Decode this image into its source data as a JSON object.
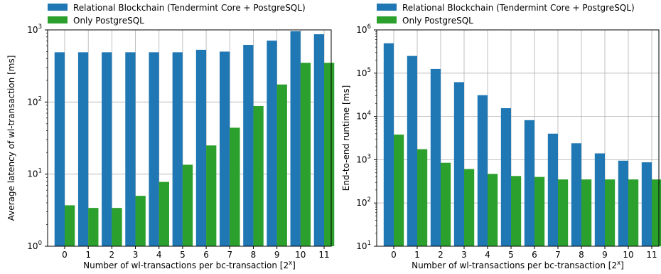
{
  "colors": {
    "blockchain": "#1f77b4",
    "postgres": "#2ca02c",
    "grid": "#b0b0b0",
    "axis": "#000000"
  },
  "chart_data": [
    {
      "type": "bar",
      "title": "",
      "xlabel": "Number of wl-transactions per bc-transaction [2^x]",
      "ylabel": "Average latency of wl-transaction [ms]",
      "yscale": "log",
      "ylim": [
        1,
        1000
      ],
      "yticks": [
        {
          "value": 1,
          "base": "10",
          "exp": "0"
        },
        {
          "value": 10,
          "base": "10",
          "exp": "1"
        },
        {
          "value": 100,
          "base": "10",
          "exp": "2"
        },
        {
          "value": 1000,
          "base": "10",
          "exp": "3"
        }
      ],
      "categories": [
        "0",
        "1",
        "2",
        "3",
        "4",
        "5",
        "6",
        "7",
        "8",
        "9",
        "10",
        "11"
      ],
      "grid": true,
      "legend_position": "top-left, above the plot",
      "series": [
        {
          "name": "Relational Blockchain (Tendermint Core + PostgreSQL)",
          "values": [
            490,
            490,
            490,
            490,
            490,
            490,
            530,
            500,
            620,
            710,
            960,
            870
          ]
        },
        {
          "name": "Only PostgreSQL",
          "values": [
            3.7,
            3.4,
            3.4,
            5.0,
            7.8,
            13.5,
            25,
            44,
            88,
            175,
            350,
            350
          ]
        }
      ]
    },
    {
      "type": "bar",
      "title": "",
      "xlabel": "Number of wl-transactions per bc-transaction [2^x]",
      "ylabel": "End-to-end runtime [ms]",
      "yscale": "log",
      "ylim": [
        10,
        1000000
      ],
      "yticks": [
        {
          "value": 10,
          "base": "10",
          "exp": "1"
        },
        {
          "value": 100,
          "base": "10",
          "exp": "2"
        },
        {
          "value": 1000,
          "base": "10",
          "exp": "3"
        },
        {
          "value": 10000,
          "base": "10",
          "exp": "4"
        },
        {
          "value": 100000,
          "base": "10",
          "exp": "5"
        },
        {
          "value": 1000000,
          "base": "10",
          "exp": "6"
        }
      ],
      "categories": [
        "0",
        "1",
        "2",
        "3",
        "4",
        "5",
        "6",
        "7",
        "8",
        "9",
        "10",
        "11"
      ],
      "grid": true,
      "legend_position": "top-left, above the plot",
      "series": [
        {
          "name": "Relational Blockchain (Tendermint Core + PostgreSQL)",
          "values": [
            490000,
            250000,
            125000,
            62000,
            31000,
            15500,
            8200,
            4000,
            2400,
            1400,
            950,
            870
          ]
        },
        {
          "name": "Only PostgreSQL",
          "values": [
            3800,
            1750,
            850,
            610,
            470,
            420,
            400,
            350,
            350,
            350,
            350,
            350
          ]
        }
      ]
    }
  ]
}
